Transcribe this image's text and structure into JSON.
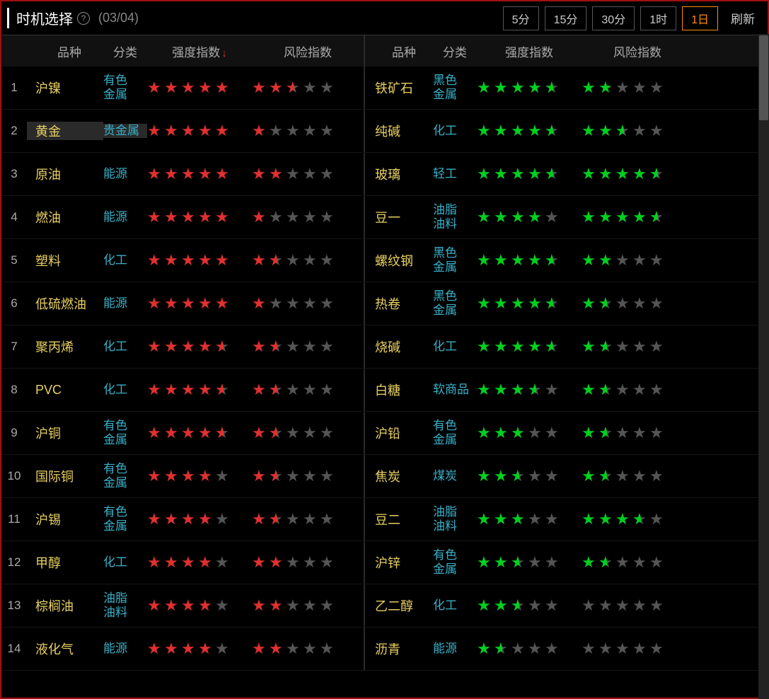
{
  "header": {
    "title": "时机选择",
    "help_icon": "?",
    "date": "(03/04)",
    "time_buttons": [
      "5分",
      "15分",
      "30分",
      "1时",
      "1日"
    ],
    "active_time_idx": 4,
    "refresh_label": "刷新"
  },
  "columns": {
    "idx": "",
    "name": "品种",
    "cat": "分类",
    "strength": "强度指数",
    "risk": "风险指数",
    "sort_col": "strength",
    "sort_dir": "desc"
  },
  "colors": {
    "star_red": "#e03030",
    "star_green": "#00d020",
    "star_empty": "#555555",
    "name_color": "#e8d060",
    "cat_color": "#3ab0c8",
    "active_border": "#ff8c00",
    "outer_border": "#a01010"
  },
  "rows": [
    {
      "idx": 1,
      "l": {
        "name": "沪镍",
        "cat": "有色金属",
        "str": 5,
        "risk": 2.5
      },
      "r": {
        "name": "铁矿石",
        "cat": "黑色金属",
        "str": 4.5,
        "risk": 2
      }
    },
    {
      "idx": 2,
      "l": {
        "name": "黄金",
        "cat": "贵金属",
        "str": 5,
        "risk": 1,
        "hl": true
      },
      "r": {
        "name": "纯碱",
        "cat": "化工",
        "str": 4.5,
        "risk": 2.5
      }
    },
    {
      "idx": 3,
      "l": {
        "name": "原油",
        "cat": "能源",
        "str": 5,
        "risk": 2
      },
      "r": {
        "name": "玻璃",
        "cat": "轻工",
        "str": 4.5,
        "risk": 4.5
      }
    },
    {
      "idx": 4,
      "l": {
        "name": "燃油",
        "cat": "能源",
        "str": 5,
        "risk": 1
      },
      "r": {
        "name": "豆一",
        "cat": "油脂油料",
        "str": 4,
        "risk": 4.5
      }
    },
    {
      "idx": 5,
      "l": {
        "name": "塑料",
        "cat": "化工",
        "str": 5,
        "risk": 1.5
      },
      "r": {
        "name": "螺纹钢",
        "cat": "黑色金属",
        "str": 4.5,
        "risk": 2
      }
    },
    {
      "idx": 6,
      "l": {
        "name": "低硫燃油",
        "cat": "能源",
        "str": 5,
        "risk": 1
      },
      "r": {
        "name": "热卷",
        "cat": "黑色金属",
        "str": 4.5,
        "risk": 1.5
      }
    },
    {
      "idx": 7,
      "l": {
        "name": "聚丙烯",
        "cat": "化工",
        "str": 4.5,
        "risk": 1.5
      },
      "r": {
        "name": "烧碱",
        "cat": "化工",
        "str": 4.5,
        "risk": 1.5
      }
    },
    {
      "idx": 8,
      "l": {
        "name": "PVC",
        "cat": "化工",
        "str": 4.5,
        "risk": 1.5
      },
      "r": {
        "name": "白糖",
        "cat": "软商品",
        "str": 3.5,
        "risk": 1.5
      }
    },
    {
      "idx": 9,
      "l": {
        "name": "沪铜",
        "cat": "有色金属",
        "str": 4.5,
        "risk": 1.5
      },
      "r": {
        "name": "沪铅",
        "cat": "有色金属",
        "str": 3,
        "risk": 1.5
      }
    },
    {
      "idx": 10,
      "l": {
        "name": "国际铜",
        "cat": "有色金属",
        "str": 4,
        "risk": 1.5
      },
      "r": {
        "name": "焦炭",
        "cat": "煤炭",
        "str": 2.5,
        "risk": 1.5
      }
    },
    {
      "idx": 11,
      "l": {
        "name": "沪锡",
        "cat": "有色金属",
        "str": 4,
        "risk": 1.5
      },
      "r": {
        "name": "豆二",
        "cat": "油脂油料",
        "str": 3,
        "risk": 3.5
      }
    },
    {
      "idx": 12,
      "l": {
        "name": "甲醇",
        "cat": "化工",
        "str": 4,
        "risk": 2
      },
      "r": {
        "name": "沪锌",
        "cat": "有色金属",
        "str": 2.5,
        "risk": 1.5
      }
    },
    {
      "idx": 13,
      "l": {
        "name": "棕榈油",
        "cat": "油脂油料",
        "str": 4,
        "risk": 2
      },
      "r": {
        "name": "乙二醇",
        "cat": "化工",
        "str": 2.5,
        "risk": 0
      }
    },
    {
      "idx": 14,
      "l": {
        "name": "液化气",
        "cat": "能源",
        "str": 4,
        "risk": 2
      },
      "r": {
        "name": "沥青",
        "cat": "能源",
        "str": 1.5,
        "risk": 0
      }
    }
  ]
}
